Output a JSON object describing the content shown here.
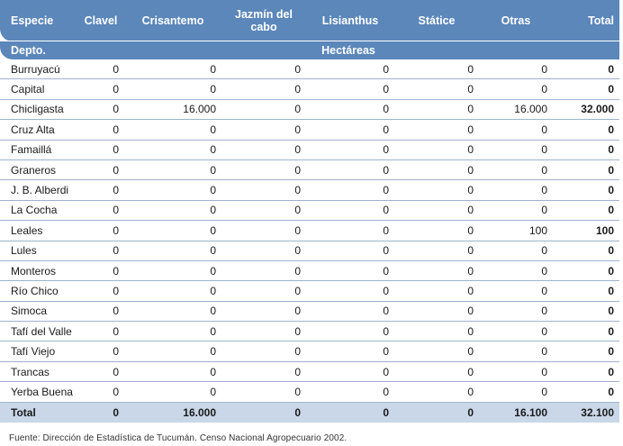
{
  "header": {
    "especie": "Especie",
    "columns": [
      "Clavel",
      "Crisantemo",
      "Jazmín del cabo",
      "Lisianthus",
      "Státice",
      "Otras",
      "Total"
    ],
    "depto": "Depto.",
    "unit": "Hectáreas"
  },
  "rows": [
    {
      "name": "Burruyacú",
      "values": [
        "0",
        "0",
        "0",
        "0",
        "0",
        "0",
        "0"
      ]
    },
    {
      "name": "Capital",
      "values": [
        "0",
        "0",
        "0",
        "0",
        "0",
        "0",
        "0"
      ]
    },
    {
      "name": "Chicligasta",
      "values": [
        "0",
        "16.000",
        "0",
        "0",
        "0",
        "16.000",
        "32.000"
      ]
    },
    {
      "name": "Cruz Alta",
      "values": [
        "0",
        "0",
        "0",
        "0",
        "0",
        "0",
        "0"
      ]
    },
    {
      "name": "Famaillá",
      "values": [
        "0",
        "0",
        "0",
        "0",
        "0",
        "0",
        "0"
      ]
    },
    {
      "name": "Graneros",
      "values": [
        "0",
        "0",
        "0",
        "0",
        "0",
        "0",
        "0"
      ]
    },
    {
      "name": "J. B. Alberdi",
      "values": [
        "0",
        "0",
        "0",
        "0",
        "0",
        "0",
        "0"
      ]
    },
    {
      "name": "La Cocha",
      "values": [
        "0",
        "0",
        "0",
        "0",
        "0",
        "0",
        "0"
      ]
    },
    {
      "name": "Leales",
      "values": [
        "0",
        "0",
        "0",
        "0",
        "0",
        "100",
        "100"
      ]
    },
    {
      "name": "Lules",
      "values": [
        "0",
        "0",
        "0",
        "0",
        "0",
        "0",
        "0"
      ]
    },
    {
      "name": "Monteros",
      "values": [
        "0",
        "0",
        "0",
        "0",
        "0",
        "0",
        "0"
      ]
    },
    {
      "name": "Río Chico",
      "values": [
        "0",
        "0",
        "0",
        "0",
        "0",
        "0",
        "0"
      ]
    },
    {
      "name": "Simoca",
      "values": [
        "0",
        "0",
        "0",
        "0",
        "0",
        "0",
        "0"
      ]
    },
    {
      "name": "Tafí del Valle",
      "values": [
        "0",
        "0",
        "0",
        "0",
        "0",
        "0",
        "0"
      ]
    },
    {
      "name": "Tafí Viejo",
      "values": [
        "0",
        "0",
        "0",
        "0",
        "0",
        "0",
        "0"
      ]
    },
    {
      "name": "Trancas",
      "values": [
        "0",
        "0",
        "0",
        "0",
        "0",
        "0",
        "0"
      ]
    },
    {
      "name": "Yerba Buena",
      "values": [
        "0",
        "0",
        "0",
        "0",
        "0",
        "0",
        "0"
      ]
    }
  ],
  "total": {
    "name": "Total",
    "values": [
      "0",
      "16.000",
      "0",
      "0",
      "0",
      "16.100",
      "32.100"
    ]
  },
  "source": "Fuente: Dirección de Estadística de Tucumán. Censo Nacional Agropecuario 2002.",
  "colors": {
    "header": "#5b87ba",
    "total_row": "#c9d7e8",
    "row_line": "#9db3ce"
  }
}
